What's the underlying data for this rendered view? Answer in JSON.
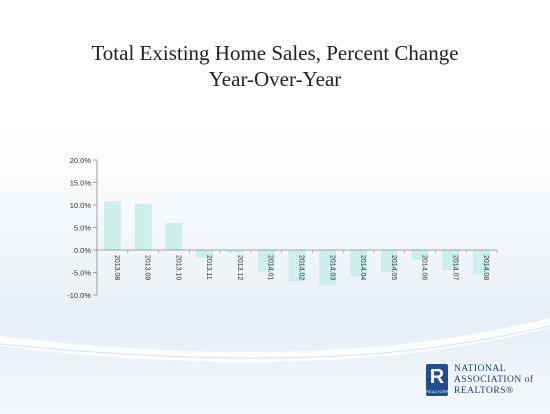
{
  "chart_data": {
    "type": "bar",
    "title": "Total Existing Home Sales, Percent Change",
    "subtitle": "Year-Over-Year",
    "categories": [
      "2013.08",
      "2013.09",
      "2013.10",
      "2013.11",
      "2013.12",
      "2014.01",
      "2014.02",
      "2014.03",
      "2014.04",
      "2014.05",
      "2014.06",
      "2014.07",
      "2014.08"
    ],
    "values": [
      10.7,
      10.2,
      5.9,
      -1.6,
      -0.5,
      -4.7,
      -6.8,
      -7.6,
      -5.8,
      -4.8,
      -2.0,
      -4.4,
      -5.2
    ],
    "y_ticks": [
      "20.0%",
      "15.0%",
      "10.0%",
      "5.0%",
      "0.0%",
      "-5.0%",
      "-10.0%"
    ],
    "ylim": [
      -10,
      20
    ],
    "xlabel": "",
    "ylabel": "",
    "grid": false,
    "bar_color": "#cdf0ef"
  },
  "logo": {
    "mark": "R",
    "mark_sub": "REALTOR®",
    "line1": "NATIONAL",
    "line2": "ASSOCIATION of",
    "line3": "REALTORS®"
  }
}
